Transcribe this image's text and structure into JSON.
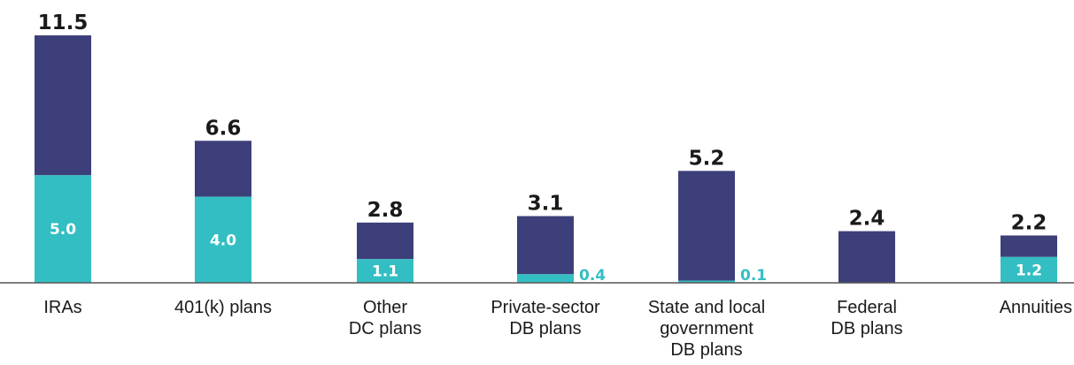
{
  "chart_data": {
    "type": "bar",
    "stacked": true,
    "title": "",
    "xlabel": "",
    "ylabel": "",
    "ylim": [
      0,
      11.5
    ],
    "grid": false,
    "legend": "none",
    "colors": {
      "lower": "#33bec3",
      "upper": "#3d3f7a",
      "baseline": "#555555"
    },
    "categories": [
      [
        "IRAs"
      ],
      [
        "401(k) plans"
      ],
      [
        "Other",
        "DC plans"
      ],
      [
        "Private-sector",
        "DB plans"
      ],
      [
        "State and local",
        "government",
        "DB plans"
      ],
      [
        "Federal",
        "DB plans"
      ],
      [
        "Annuities"
      ]
    ],
    "totals": [
      11.5,
      6.6,
      2.8,
      3.1,
      5.2,
      2.4,
      2.2
    ],
    "lower_values": [
      5.0,
      4.0,
      1.1,
      0.4,
      0.1,
      0.0,
      1.2
    ],
    "total_labels": [
      "11.5",
      "6.6",
      "2.8",
      "3.1",
      "5.2",
      "2.4",
      "2.2"
    ],
    "lower_labels": [
      "5.0",
      "4.0",
      "1.1",
      "0.4",
      "0.1",
      "",
      "1.2"
    ]
  }
}
